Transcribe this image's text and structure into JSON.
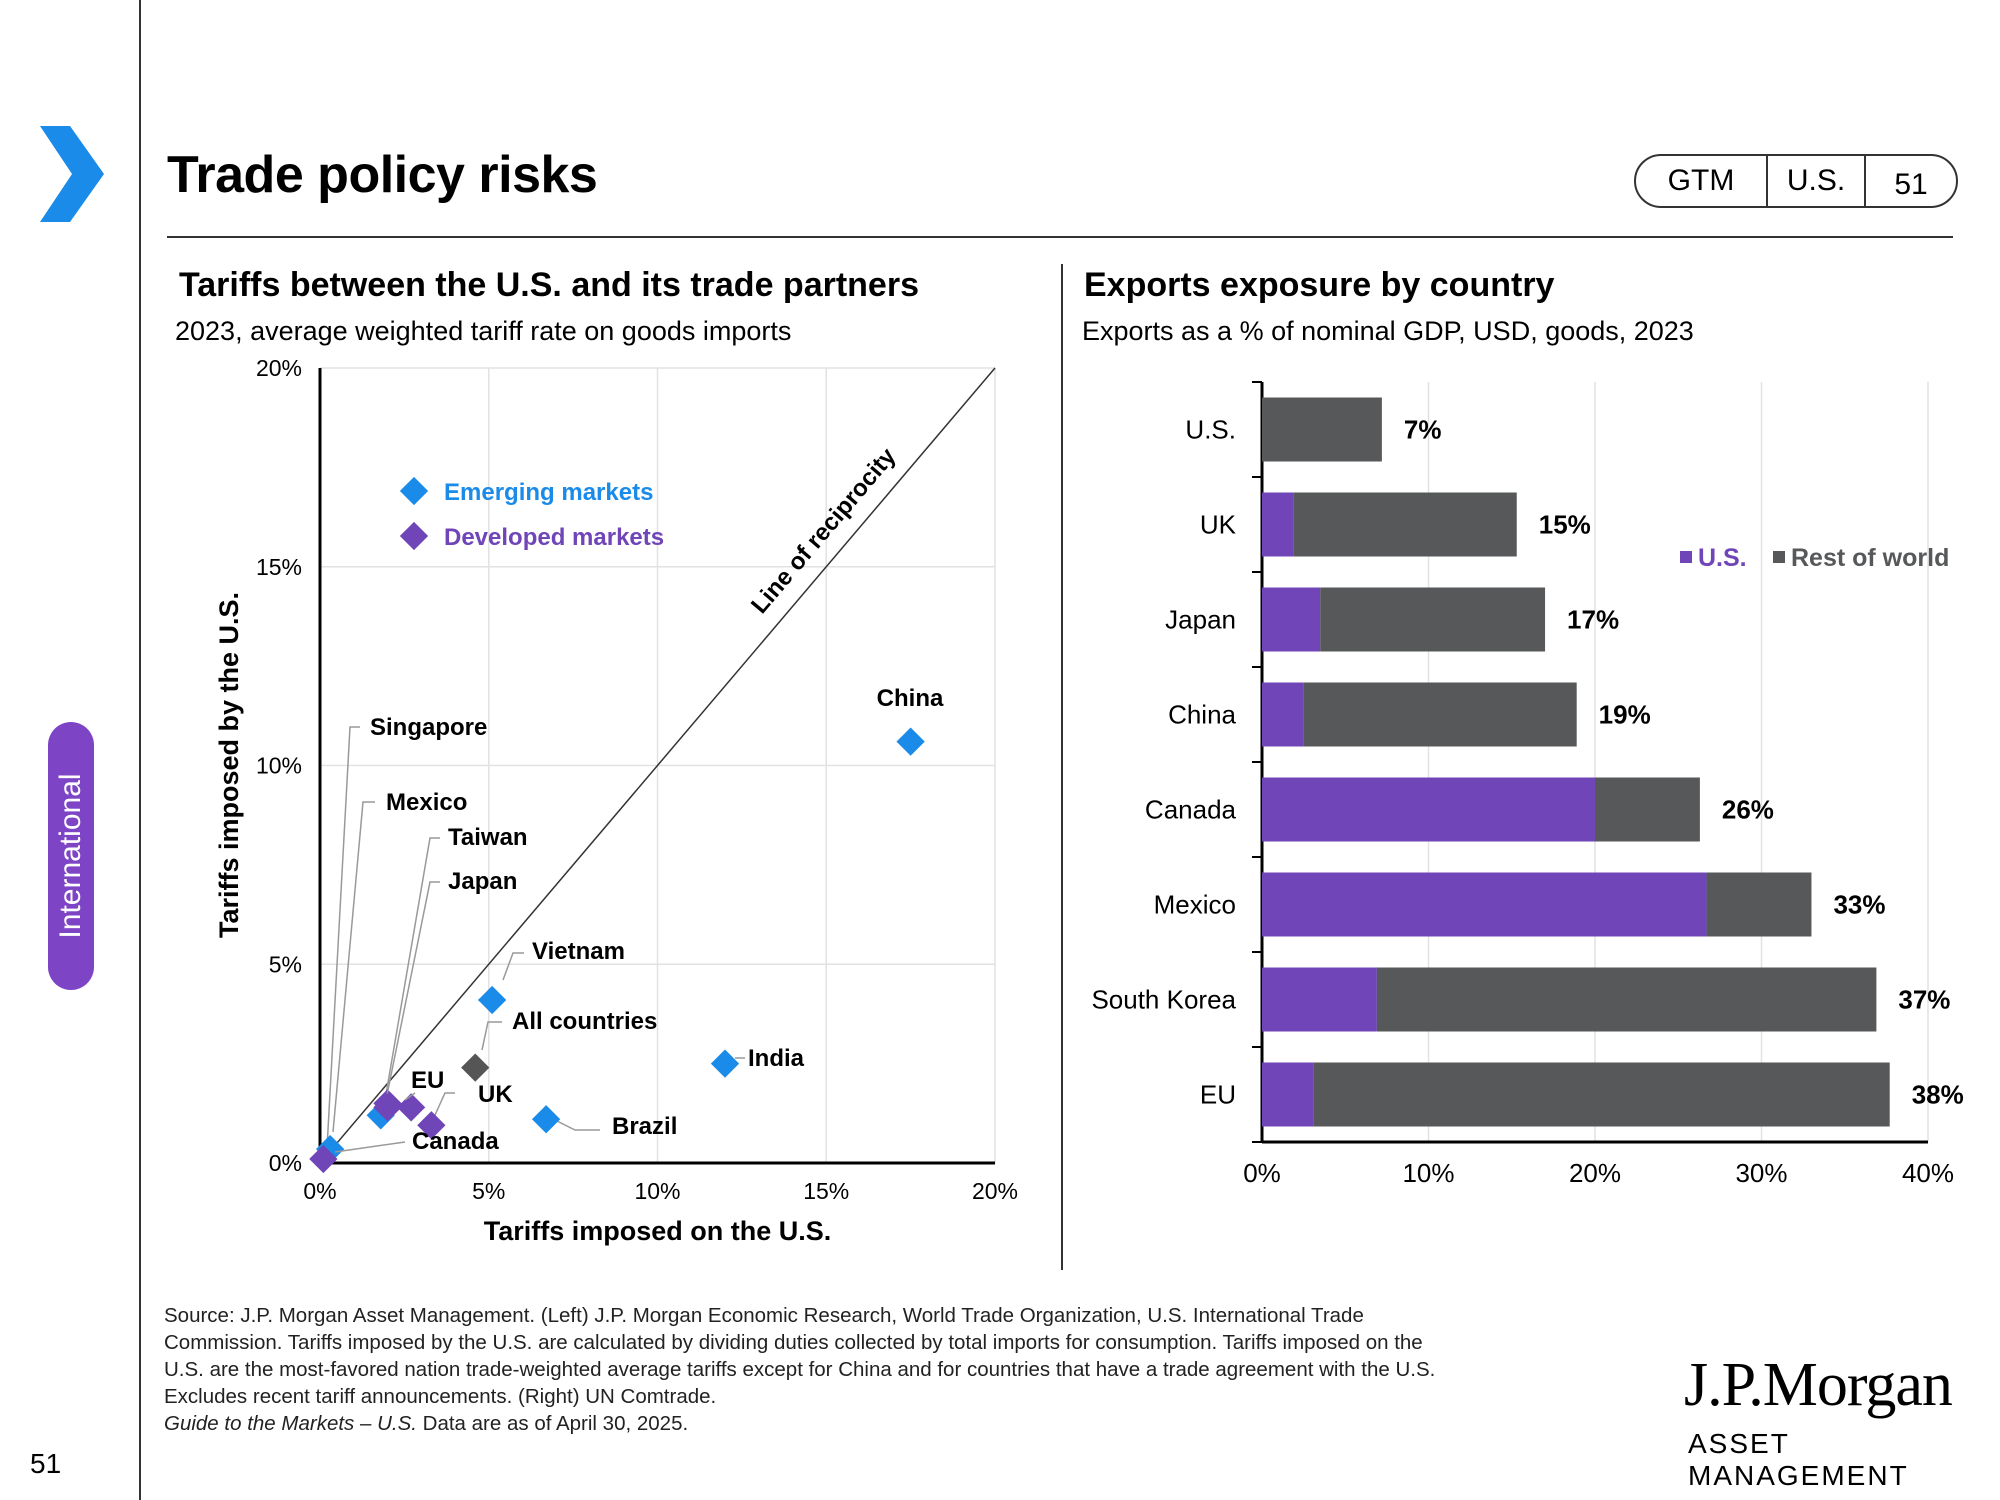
{
  "page": {
    "title": "Trade policy risks",
    "badge": [
      "GTM",
      "U.S.",
      "51"
    ],
    "side_tab": "International",
    "page_number": "51",
    "footnote_lines": [
      "Source: J.P. Morgan Asset Management. (Left) J.P. Morgan Economic Research, World Trade Organization, U.S. International Trade",
      "Commission. Tariffs imposed by the U.S. are calculated by dividing duties collected by total imports for consumption. Tariffs imposed on the",
      "U.S. are the most-favored nation trade-weighted average tariffs except for China and for countries that have a trade agreement with the U.S.",
      "Excludes recent tariff announcements. (Right) UN Comtrade."
    ],
    "footnote_guide_italic": "Guide to the Markets – U.S.",
    "footnote_guide_rest": " Data are as of April 30, 2025.",
    "logo_main": "J.P.Morgan",
    "logo_sub": "ASSET MANAGEMENT",
    "colors": {
      "accent": "#1a8be8",
      "purple": "#6f45b8",
      "dark": "#56585a"
    }
  },
  "chart_data": [
    {
      "type": "scatter",
      "title": "Tariffs between the U.S. and its trade partners",
      "subtitle": "2023, average weighted tariff rate on goods imports",
      "xlabel": "Tariffs imposed on the U.S.",
      "ylabel": "Tariffs imposed by the U.S.",
      "xlim": [
        0,
        20
      ],
      "ylim": [
        0,
        20
      ],
      "xticks": [
        "0%",
        "5%",
        "10%",
        "15%",
        "20%"
      ],
      "yticks": [
        "0%",
        "5%",
        "10%",
        "15%",
        "20%"
      ],
      "grid": true,
      "reference_line": "Line of reciprocity",
      "legend": [
        {
          "name": "Emerging markets",
          "color": "#1a8be8"
        },
        {
          "name": "Developed markets",
          "color": "#6f45b8"
        }
      ],
      "points": [
        {
          "label": "China",
          "x": 17.5,
          "y": 10.6,
          "group": "em"
        },
        {
          "label": "India",
          "x": 12.0,
          "y": 2.5,
          "group": "em"
        },
        {
          "label": "Vietnam",
          "x": 5.1,
          "y": 4.1,
          "group": "em"
        },
        {
          "label": "Brazil",
          "x": 6.7,
          "y": 1.1,
          "group": "em"
        },
        {
          "label": "All countries",
          "x": 4.6,
          "y": 2.4,
          "group": "all"
        },
        {
          "label": "Mexico",
          "x": 1.8,
          "y": 1.2,
          "group": "em"
        },
        {
          "label": "Taiwan",
          "x": 2.0,
          "y": 1.5,
          "group": "dm"
        },
        {
          "label": "Japan",
          "x": 2.7,
          "y": 1.4,
          "group": "dm"
        },
        {
          "label": "UK",
          "x": 3.3,
          "y": 0.95,
          "group": "dm"
        },
        {
          "label": "EU",
          "x": 2.0,
          "y": 1.4,
          "group": "dm"
        },
        {
          "label": "Singapore",
          "x": 0.3,
          "y": 0.35,
          "group": "em"
        },
        {
          "label": "Canada",
          "x": 0.1,
          "y": 0.1,
          "group": "dm"
        }
      ]
    },
    {
      "type": "bar",
      "orientation": "horizontal",
      "stacked": true,
      "title": "Exports exposure by country",
      "subtitle": "Exports as a % of nominal GDP, USD, goods, 2023",
      "categories": [
        "U.S.",
        "UK",
        "Japan",
        "China",
        "Canada",
        "Mexico",
        "South Korea",
        "EU"
      ],
      "series": [
        {
          "name": "U.S.",
          "color": "#6f45b8",
          "values": [
            0,
            1.9,
            3.5,
            2.5,
            20.0,
            26.7,
            6.9,
            3.1
          ]
        },
        {
          "name": "Rest of world",
          "color": "#56585a",
          "values": [
            7.2,
            13.4,
            13.5,
            16.4,
            6.3,
            6.3,
            30.0,
            34.6
          ]
        }
      ],
      "totals_labels": [
        "7%",
        "15%",
        "17%",
        "19%",
        "26%",
        "33%",
        "37%",
        "38%"
      ],
      "xlim": [
        0,
        40
      ],
      "xticks": [
        "0%",
        "10%",
        "20%",
        "30%",
        "40%"
      ],
      "legend_position": "right"
    }
  ]
}
